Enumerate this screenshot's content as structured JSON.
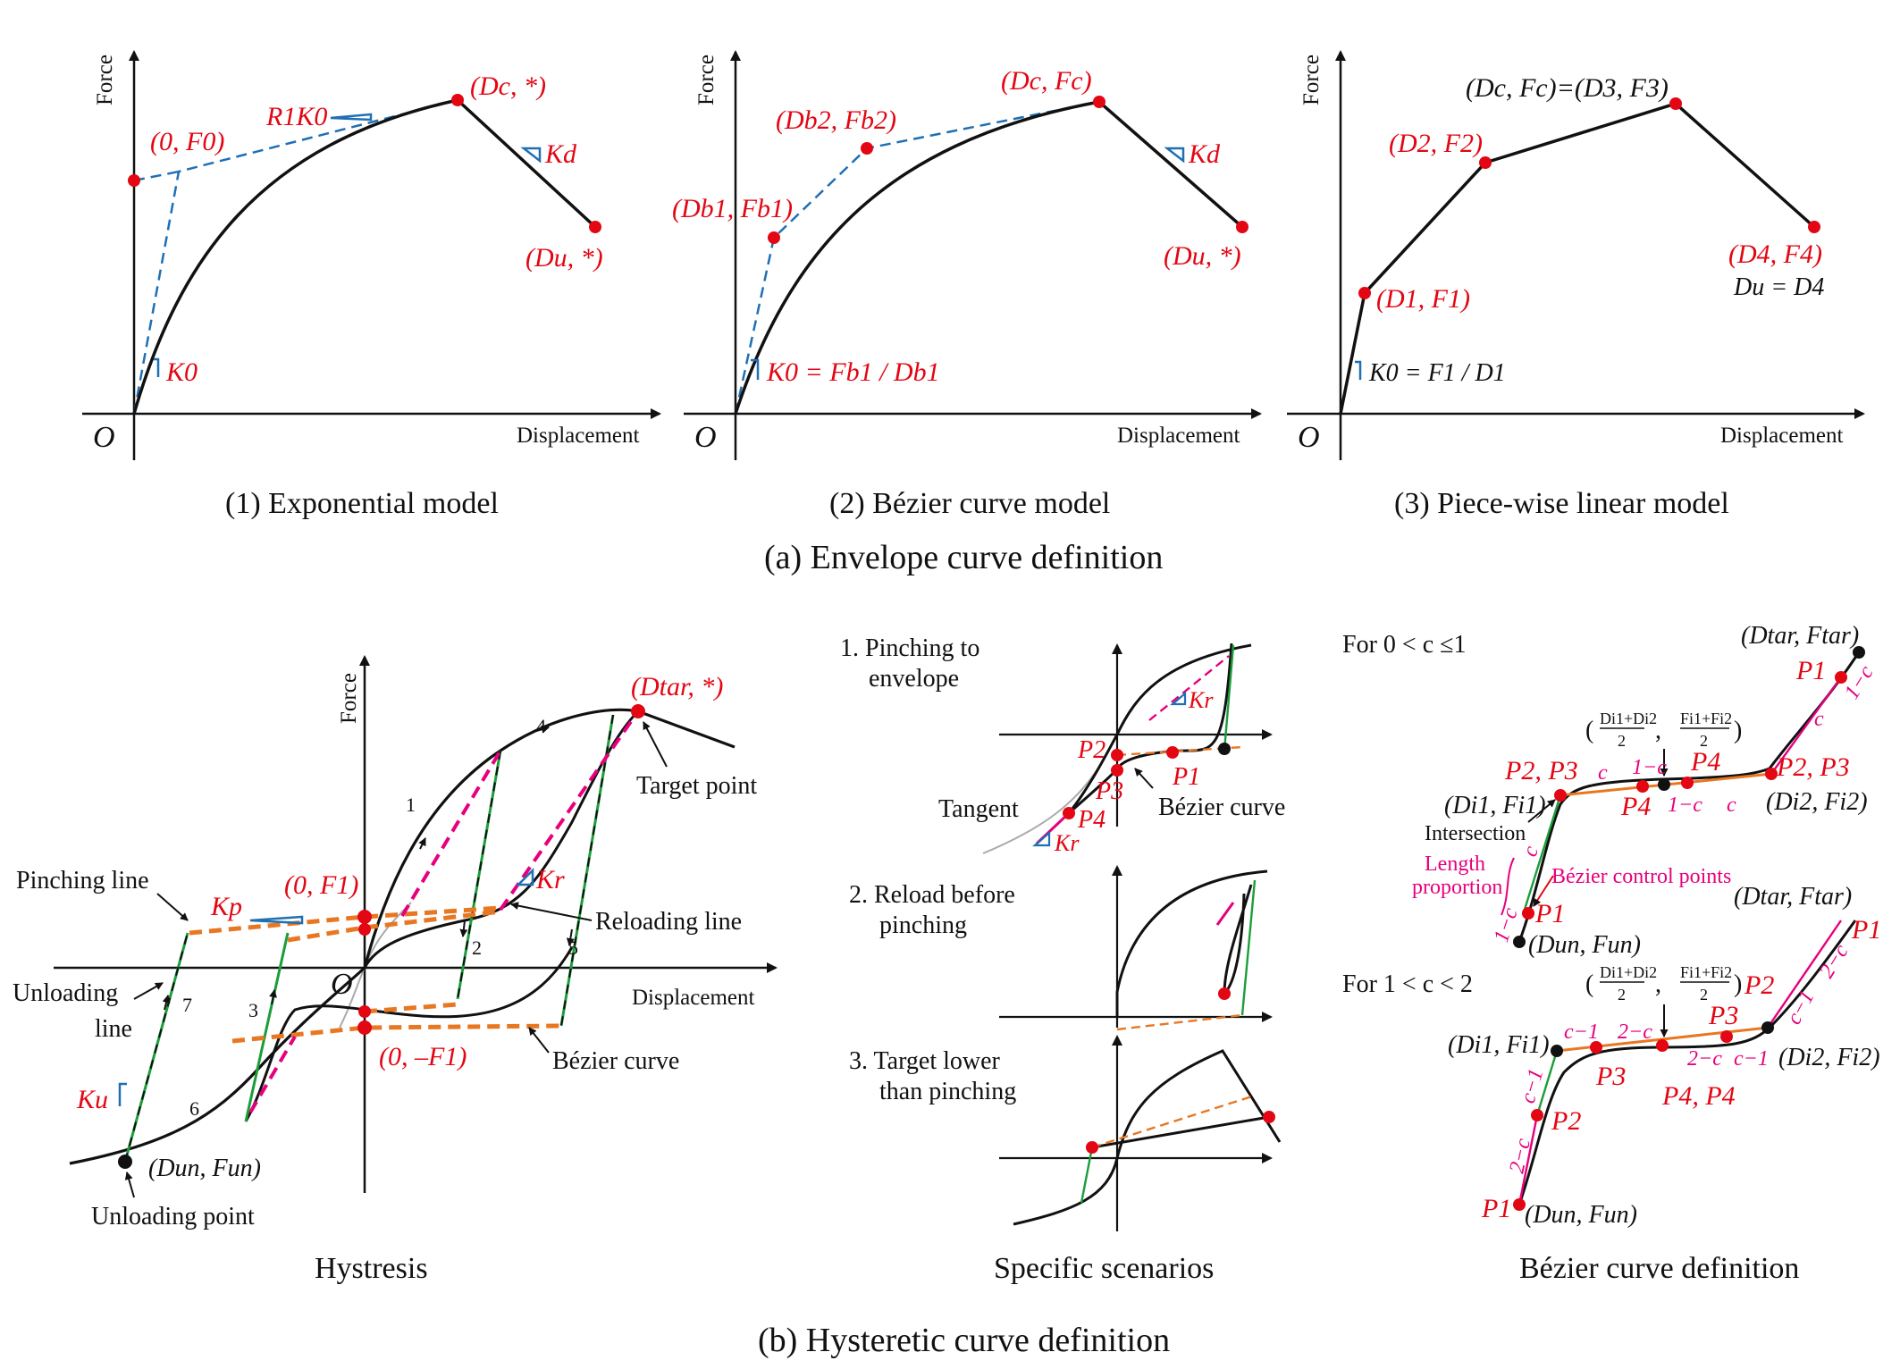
{
  "section_a": {
    "caption": "(a) Envelope curve definition",
    "panel1": {
      "caption": "(1) Exponential model",
      "y_label": "Force",
      "x_label": "Displacement",
      "origin": "O",
      "labels": {
        "f0": "(0, F0)",
        "r1k0": "R1K0",
        "dc": "(Dc, *)",
        "kd": "Kd",
        "du": "(Du, *)",
        "k0": "K0"
      }
    },
    "panel2": {
      "caption": "(2) Bézier curve model",
      "y_label": "Force",
      "x_label": "Displacement",
      "origin": "O",
      "labels": {
        "db2": "(Db2, Fb2)",
        "db1": "(Db1, Fb1)",
        "dc": "(Dc, Fc)",
        "kd": "Kd",
        "du": "(Du, *)",
        "k0": "K0 = Fb1 / Db1"
      }
    },
    "panel3": {
      "caption": "(3) Piece-wise linear model",
      "y_label": "Force",
      "x_label": "Displacement",
      "origin": "O",
      "labels": {
        "dc": "(Dc, Fc)=(D3, F3)",
        "d2": "(D2, F2)",
        "d1": "(D1, F1)",
        "d4": "(D4, F4)",
        "du": "Du = D4",
        "k0": "K0 = F1 / D1"
      }
    }
  },
  "section_b": {
    "caption": "(b) Hysteretic curve definition",
    "hysteresis": {
      "caption": "Hystresis",
      "y_label": "Force",
      "x_label": "Displacement",
      "origin": "O",
      "labels": {
        "dtar": "(Dtar, *)",
        "target": "Target point",
        "pinching": "Pinching line",
        "kp": "Kp",
        "f1": "(0, F1)",
        "mf1": "(0, –F1)",
        "kr": "Kr",
        "reloading": "Reloading line",
        "unloading1": "Unloading",
        "unloading2": "line",
        "bezier": "Bézier curve",
        "ku": "Ku",
        "dun": "(Dun, Fun)",
        "unpoint": "Unloading point"
      },
      "step_numbers": [
        "1",
        "2",
        "3",
        "4",
        "5",
        "6",
        "7"
      ]
    },
    "scenarios": {
      "caption": "Specific scenarios",
      "s1a": "1. Pinching to",
      "s1b": "envelope",
      "s2a": "2. Reload before",
      "s2b": "pinching",
      "s3a": "3. Target lower",
      "s3b": "than pinching",
      "labels": {
        "kr1": "Kr",
        "kr2": "Kr",
        "p1": "P1",
        "p2": "P2",
        "p3": "P3",
        "p4": "P4",
        "tangent": "Tangent",
        "bezier": "Bézier curve"
      }
    },
    "bezier_def": {
      "caption": "Bézier curve definition",
      "case1": "For 0 < c ≤1",
      "case2": "For 1 < c < 2",
      "labels": {
        "dtar": "(Dtar, Ftar)",
        "p1": "P1",
        "p2p3": "P2, P3",
        "p4": "P4",
        "mid_d": "Di1+Di2",
        "mid_f": "Fi1+Fi2",
        "two": "2",
        "di1": "(Di1, Fi1)",
        "di2": "(Di2, Fi2)",
        "intersection": "Intersection",
        "length1": "Length",
        "length2": "proportion",
        "control": "Bézier control points",
        "dun": "(Dun, Fun)",
        "c": "c",
        "omc": "1−c",
        "tmc": "2−c",
        "cm1": "c−1",
        "p2": "P2",
        "p3": "P3",
        "p4p4": "P4, P4"
      }
    }
  },
  "colors": {
    "red": "#e30613",
    "blue": "#1f6fb5",
    "green": "#1b9e3a",
    "orange": "#e87722",
    "magenta": "#e6007e"
  }
}
